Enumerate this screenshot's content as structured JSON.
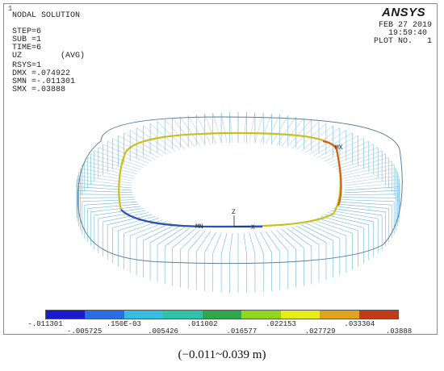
{
  "window": {
    "number": "1"
  },
  "header": {
    "solution_title": "NODAL SOLUTION",
    "step": "STEP=6",
    "sub": "SUB =1",
    "time": "TIME=6",
    "component": "UZ",
    "avg": "(AVG)",
    "rsys": "RSYS=1",
    "dmx": "DMX =.074922",
    "smn": "SMN =-.011301",
    "smx": "SMX =.03888"
  },
  "top_right": {
    "logo": "ANSYS",
    "date": "FEB 27 2019",
    "time": "19:59:40",
    "plot_no": "PLOT NO.   1"
  },
  "markers": {
    "mx": "MX",
    "mn": "MN",
    "z": "Z",
    "x": "X"
  },
  "legend": {
    "colors": [
      "#1a1ad0",
      "#2a6ee6",
      "#38bde0",
      "#2fc2a8",
      "#2fa84a",
      "#8fd61c",
      "#e6ec16",
      "#e0a41c",
      "#c23a16"
    ],
    "top_labels": [
      "-.011301",
      ".150E-03",
      ".011002",
      ".022153",
      ".033304"
    ],
    "bottom_labels": [
      "-.005725",
      ".005426",
      ".016577",
      ".027729",
      ".03888"
    ]
  },
  "caption": "(−0.011~0.039 m)"
}
